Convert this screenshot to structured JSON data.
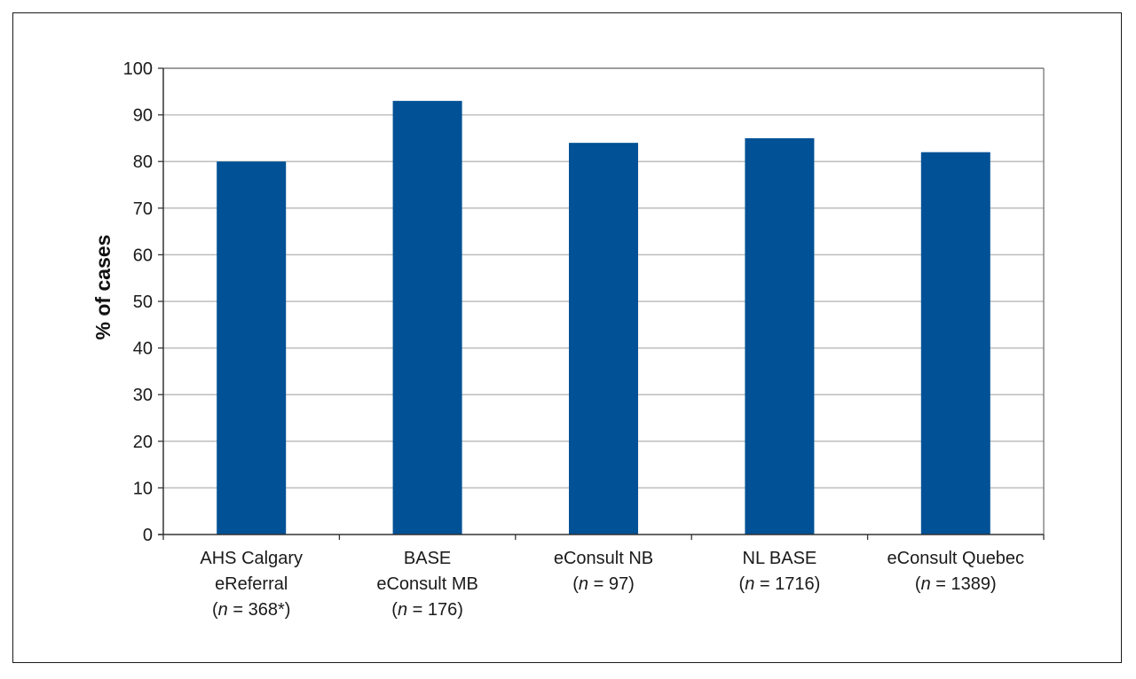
{
  "chart_data": {
    "type": "bar",
    "title": "",
    "xlabel": "",
    "ylabel": "% of cases",
    "ylim": [
      0,
      100
    ],
    "yticks": [
      0,
      10,
      20,
      30,
      40,
      50,
      60,
      70,
      80,
      90,
      100
    ],
    "grid": true,
    "bar_color": "#005195",
    "categories": [
      [
        "AHS Calgary",
        "eReferral",
        "(n = 368*)"
      ],
      [
        "BASE",
        "eConsult MB",
        "(n = 176)"
      ],
      [
        "eConsult NB",
        "(n = 97)"
      ],
      [
        "NL BASE",
        "(n = 1716)"
      ],
      [
        "eConsult Quebec",
        "(n = 1389)"
      ]
    ],
    "values": [
      80,
      93,
      84,
      85,
      82
    ]
  }
}
